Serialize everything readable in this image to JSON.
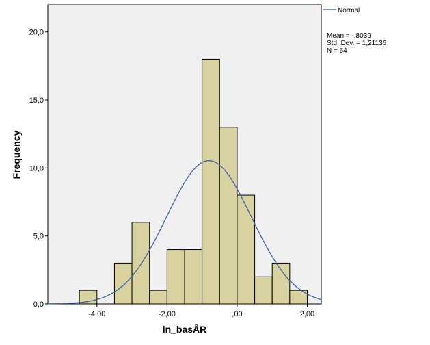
{
  "chart_data": {
    "type": "bar",
    "title": "",
    "xlabel": "ln_basÅR",
    "ylabel": "Frequency",
    "bin_width": 0.5,
    "bins": [
      {
        "start": -4.5,
        "end": -4.0,
        "count": 1
      },
      {
        "start": -4.0,
        "end": -3.5,
        "count": 0
      },
      {
        "start": -3.5,
        "end": -3.0,
        "count": 3
      },
      {
        "start": -3.0,
        "end": -2.5,
        "count": 6
      },
      {
        "start": -2.5,
        "end": -2.0,
        "count": 1
      },
      {
        "start": -2.0,
        "end": -1.5,
        "count": 4
      },
      {
        "start": -1.5,
        "end": -1.0,
        "count": 4
      },
      {
        "start": -1.0,
        "end": -0.5,
        "count": 18
      },
      {
        "start": -0.5,
        "end": 0.0,
        "count": 13
      },
      {
        "start": 0.0,
        "end": 0.5,
        "count": 8
      },
      {
        "start": 0.5,
        "end": 1.0,
        "count": 2
      },
      {
        "start": 1.0,
        "end": 1.5,
        "count": 3
      },
      {
        "start": 1.5,
        "end": 2.0,
        "count": 1
      }
    ],
    "xlim": [
      -5.4,
      2.4
    ],
    "ylim": [
      0,
      22
    ],
    "x_ticks": [
      {
        "value": -4.0,
        "label": "-4,00"
      },
      {
        "value": -2.0,
        "label": "-2,00"
      },
      {
        "value": 0.0,
        "label": ",00"
      },
      {
        "value": 2.0,
        "label": "2,00"
      }
    ],
    "y_ticks": [
      {
        "value": 0,
        "label": "0,0"
      },
      {
        "value": 5,
        "label": "5,0"
      },
      {
        "value": 10,
        "label": "10,0"
      },
      {
        "value": 15,
        "label": "15,0"
      },
      {
        "value": 20,
        "label": "20,0"
      }
    ],
    "normal_curve": {
      "mean": -0.8039,
      "sd": 1.21135,
      "n": 64
    },
    "legend": {
      "placement": "top-right",
      "entry": "Normal",
      "stats": [
        "Mean = -,8039",
        "Std. Dev. = 1,21135",
        "N = 64"
      ]
    },
    "colors": {
      "bar_fill": "#d7d29e",
      "bar_stroke": "#000000",
      "plot_background": "#f0f0f0",
      "curve": "#3a5fa8"
    }
  }
}
